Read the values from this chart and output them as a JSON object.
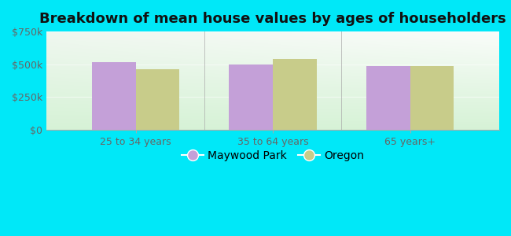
{
  "title": "Breakdown of mean house values by ages of householders",
  "categories": [
    "25 to 34 years",
    "35 to 64 years",
    "65 years+"
  ],
  "maywood_park": [
    515000,
    497000,
    487000
  ],
  "oregon": [
    462000,
    540000,
    487000
  ],
  "ylim": [
    0,
    750000
  ],
  "yticks": [
    0,
    250000,
    500000,
    750000
  ],
  "ytick_labels": [
    "$0",
    "$250k",
    "$500k",
    "$750k"
  ],
  "maywood_color": "#c4a0d8",
  "oregon_color": "#c8cc8a",
  "maywood_label": "Maywood Park",
  "oregon_label": "Oregon",
  "background_outer": "#00e8f8",
  "bar_width": 0.32,
  "title_fontsize": 13,
  "axis_label_fontsize": 9,
  "legend_fontsize": 10,
  "bg_gradient_top": "#f0faf8",
  "bg_gradient_bottom": "#d8f0d0"
}
